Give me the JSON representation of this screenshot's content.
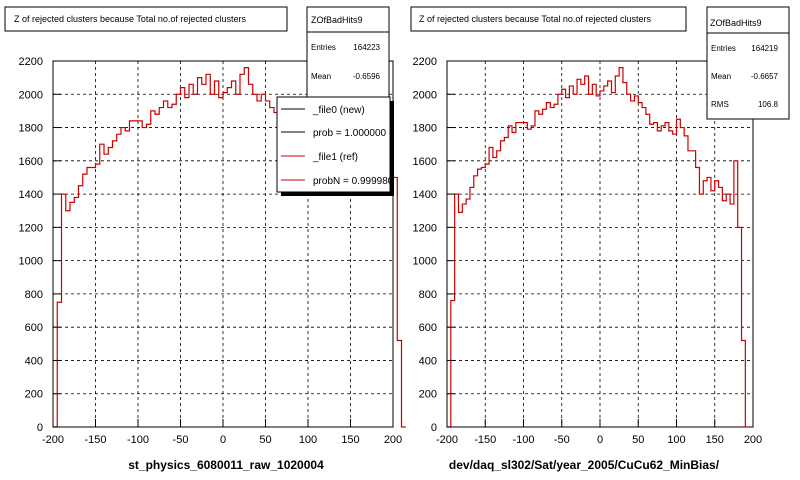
{
  "panels": [
    {
      "title": "Z of rejected clusters  because Total no.of rejected clusters",
      "xlabel": "st_physics_6080011_raw_1020004",
      "stats": {
        "name": "ZOfBadHits9",
        "rows": [
          {
            "label": "Entries",
            "value": "164223"
          },
          {
            "label": "Mean",
            "value": "-0.6596"
          }
        ]
      },
      "legend": [
        {
          "label": "_file0 (new)",
          "color": "#000000"
        },
        {
          "label": "prob = 1.000000",
          "color": "#000000"
        },
        {
          "label": "_file1 (ref)",
          "color": "#cc0000"
        },
        {
          "label": "probN = 0.999980",
          "color": "#cc0000"
        }
      ]
    },
    {
      "title": "Z of rejected clusters  because Total no.of rejected clusters",
      "xlabel": "dev/daq_sl302/Sat/year_2005/CuCu62_MinBias/",
      "stats": {
        "name": "ZOfBadHits9",
        "rows": [
          {
            "label": "Entries",
            "value": "164219"
          },
          {
            "label": "Mean",
            "value": "-0.6657"
          },
          {
            "label": "RMS",
            "value": "106.8"
          }
        ]
      },
      "legend": []
    }
  ],
  "colors": {
    "histogram": "#cc0000",
    "grid": "#000000"
  },
  "chart_data": [
    {
      "type": "histogram",
      "xlim": [
        -200,
        200
      ],
      "ylim": [
        0,
        2200
      ],
      "xticks": [
        -200,
        -150,
        -100,
        -50,
        0,
        50,
        100,
        150,
        200
      ],
      "yticks": [
        0,
        200,
        400,
        600,
        800,
        1000,
        1200,
        1400,
        1600,
        1800,
        2000,
        2200
      ],
      "grid": true,
      "legend_position": "top-right",
      "bin_edges_start": -200,
      "bin_width": 5,
      "series": [
        {
          "name": "_file1 (ref)",
          "values": [
            0,
            750,
            1400,
            1300,
            1350,
            1380,
            1450,
            1520,
            1560,
            1560,
            1580,
            1700,
            1640,
            1680,
            1720,
            1760,
            1800,
            1780,
            1840,
            1840,
            1840,
            1800,
            1820,
            1900,
            1880,
            1920,
            1960,
            1920,
            1940,
            2000,
            2040,
            1980,
            2060,
            2000,
            2100,
            2060,
            2120,
            2000,
            2080,
            1980,
            2010,
            2040,
            2080,
            2000,
            2120,
            2160,
            2060,
            2000,
            1960,
            2000,
            1960,
            1920,
            1890,
            1820,
            1840,
            1780,
            1820,
            1840,
            1800,
            1760,
            1860,
            1820,
            1760,
            1700,
            1800,
            1840,
            1820,
            1780,
            1840,
            1800,
            1760,
            1660,
            1620,
            1560,
            1540,
            1400,
            1460,
            1500,
            1420,
            1440,
            1500,
            520,
            0
          ]
        }
      ]
    },
    {
      "type": "histogram",
      "xlim": [
        -200,
        200
      ],
      "ylim": [
        0,
        2200
      ],
      "xticks": [
        -200,
        -150,
        -100,
        -50,
        0,
        50,
        100,
        150,
        200
      ],
      "yticks": [
        0,
        200,
        400,
        600,
        800,
        1000,
        1200,
        1400,
        1600,
        1800,
        2000,
        2200
      ],
      "grid": true,
      "bin_edges_start": -200,
      "bin_width": 5,
      "series": [
        {
          "name": "",
          "values": [
            0,
            760,
            1400,
            1290,
            1340,
            1370,
            1440,
            1510,
            1550,
            1560,
            1580,
            1680,
            1620,
            1660,
            1720,
            1740,
            1810,
            1770,
            1830,
            1830,
            1830,
            1790,
            1810,
            1900,
            1880,
            1910,
            1950,
            1920,
            1940,
            2000,
            2030,
            1980,
            2050,
            2000,
            2090,
            2060,
            2110,
            2000,
            2060,
            1990,
            2020,
            2050,
            2080,
            2010,
            2110,
            2160,
            2070,
            2000,
            1960,
            1990,
            1950,
            1920,
            1880,
            1820,
            1830,
            1780,
            1810,
            1830,
            1780,
            1760,
            1850,
            1800,
            1750,
            1660,
            1660,
            1560,
            1400,
            1480,
            1500,
            1420,
            1480,
            1440,
            1360,
            1400,
            1340,
            1600,
            1200,
            520,
            0
          ]
        }
      ]
    }
  ]
}
